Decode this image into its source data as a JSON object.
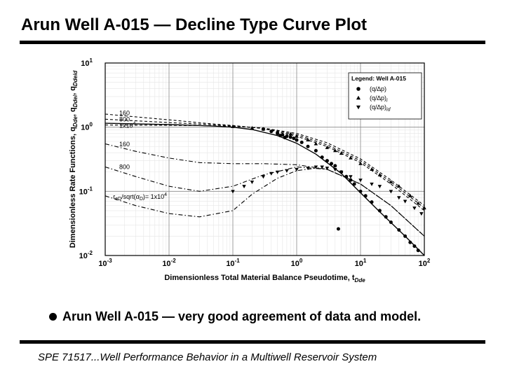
{
  "slide": {
    "title": "Arun Well A-015 — Decline Type Curve Plot",
    "bullet": "Arun Well A-015 — very good agreement of data and model.",
    "footer": "SPE 71517...Well Performance Behavior in a Multiwell Reservoir System"
  },
  "chart_data": {
    "type": "scatter",
    "x_scale": "log",
    "y_scale": "log",
    "xlim": [
      0.001,
      100
    ],
    "ylim": [
      0.01,
      10
    ],
    "grid": "major",
    "xlabel": "Dimensionless Total Material Balance Pseudotime, t",
    "xlabel_sub": "Dde",
    "ylabel_parts": [
      {
        "t": "Dimensionless Rate Functions, q",
        "s": false
      },
      {
        "t": "Dde",
        "s": true
      },
      {
        "t": ", q",
        "s": false
      },
      {
        "t": "Ddei",
        "s": true
      },
      {
        "t": ", q",
        "s": false
      },
      {
        "t": "Ddeid",
        "s": true
      }
    ],
    "x_ticks": [
      {
        "value": 0.001,
        "base": "10",
        "exp": "-3"
      },
      {
        "value": 0.01,
        "base": "10",
        "exp": "-2"
      },
      {
        "value": 0.1,
        "base": "10",
        "exp": "-1"
      },
      {
        "value": 1,
        "base": "10",
        "exp": "0"
      },
      {
        "value": 10,
        "base": "10",
        "exp": "1"
      },
      {
        "value": 100,
        "base": "10",
        "exp": "2"
      }
    ],
    "y_ticks": [
      {
        "value": 0.01,
        "base": "10",
        "exp": "-2"
      },
      {
        "value": 0.1,
        "base": "10",
        "exp": "-1"
      },
      {
        "value": 1,
        "base": "10",
        "exp": "0"
      },
      {
        "value": 10,
        "base": "10",
        "exp": "1"
      }
    ],
    "legend": {
      "position": "top-right",
      "title": "Legend: Well A-015",
      "entries": [
        {
          "marker": "circle",
          "label": "(q/∆p)"
        },
        {
          "marker": "triangle-up",
          "label": "(q/∆p)",
          "sub": "i"
        },
        {
          "marker": "triangle-down",
          "label": "(q/∆p)",
          "sub": "id"
        }
      ]
    },
    "annotations": [
      {
        "text": "160",
        "x": 0.0015,
        "y": 1.65
      },
      {
        "text": "800",
        "x": 0.0015,
        "y": 1.33
      },
      {
        "text": "1x10",
        "sup": "4",
        "x": 0.0015,
        "y": 1.06
      },
      {
        "text": "160",
        "x": 0.0015,
        "y": 0.54
      },
      {
        "text": "800",
        "x": 0.0015,
        "y": 0.24
      },
      {
        "text": "r",
        "sub": "eD",
        "rest": "/sqrt(",
        "glyph": "α",
        "sub2": "D",
        "rest2": ")= 1x10",
        "sup": "4",
        "x": 0.0012,
        "y": 0.082
      }
    ],
    "model_curves": [
      {
        "name": "rate",
        "style": "solid",
        "x": [
          0.001,
          0.01,
          0.05,
          0.1,
          0.2,
          0.5,
          1,
          2,
          5,
          10,
          20,
          50,
          100
        ],
        "y": [
          1.15,
          1.1,
          1.04,
          1.0,
          0.92,
          0.74,
          0.56,
          0.38,
          0.19,
          0.095,
          0.048,
          0.02,
          0.01
        ]
      },
      {
        "name": "integral 160",
        "style": "dashed",
        "x": [
          0.001,
          0.01,
          0.05,
          0.1,
          0.3,
          1,
          3,
          10,
          30,
          100
        ],
        "y": [
          1.6,
          1.3,
          1.12,
          1.06,
          0.95,
          0.72,
          0.5,
          0.28,
          0.13,
          0.05
        ]
      },
      {
        "name": "integral 800",
        "style": "dashed",
        "x": [
          0.001,
          0.01,
          0.05,
          0.1,
          0.3,
          1,
          3,
          10,
          30,
          100
        ],
        "y": [
          1.33,
          1.18,
          1.09,
          1.05,
          0.96,
          0.76,
          0.53,
          0.3,
          0.14,
          0.055
        ]
      },
      {
        "name": "integral 1x10^4",
        "style": "dashed",
        "x": [
          0.001,
          0.01,
          0.05,
          0.1,
          0.3,
          1,
          3,
          10,
          30,
          100
        ],
        "y": [
          1.08,
          1.07,
          1.05,
          1.03,
          0.97,
          0.8,
          0.57,
          0.32,
          0.15,
          0.06
        ]
      },
      {
        "name": "integral-derivative 160",
        "style": "dash-dot",
        "x": [
          0.001,
          0.003,
          0.01,
          0.03,
          0.1,
          0.3,
          1,
          3,
          10,
          30,
          100
        ],
        "y": [
          0.55,
          0.42,
          0.33,
          0.28,
          0.27,
          0.27,
          0.26,
          0.22,
          0.13,
          0.06,
          0.02
        ]
      },
      {
        "name": "integral-derivative 800",
        "style": "dash-dot",
        "x": [
          0.001,
          0.003,
          0.01,
          0.03,
          0.1,
          0.3,
          1,
          3,
          10,
          30,
          100
        ],
        "y": [
          0.24,
          0.17,
          0.12,
          0.1,
          0.12,
          0.18,
          0.24,
          0.22,
          0.13,
          0.06,
          0.02
        ]
      },
      {
        "name": "integral-derivative 1x10^4",
        "style": "dash-dot",
        "x": [
          0.001,
          0.003,
          0.01,
          0.03,
          0.1,
          0.2,
          0.5,
          1,
          2,
          3,
          10,
          30,
          100
        ],
        "y": [
          0.085,
          0.06,
          0.045,
          0.04,
          0.05,
          0.09,
          0.16,
          0.21,
          0.23,
          0.22,
          0.13,
          0.06,
          0.02
        ]
      }
    ],
    "series": [
      {
        "marker": "circle",
        "x": [
          0.3,
          0.4,
          0.5,
          0.6,
          0.7,
          0.8,
          0.9,
          1.0,
          1.2,
          1.5,
          2,
          2.5,
          3,
          3.5,
          4,
          5,
          6,
          7,
          8,
          10,
          12,
          15,
          20,
          25,
          30,
          40,
          50,
          60,
          70,
          80,
          4.5,
          0.55,
          0.65
        ],
        "y": [
          0.93,
          0.86,
          0.8,
          0.76,
          0.72,
          0.7,
          0.67,
          0.63,
          0.58,
          0.5,
          0.43,
          0.34,
          0.3,
          0.27,
          0.25,
          0.2,
          0.17,
          0.15,
          0.13,
          0.1,
          0.085,
          0.068,
          0.05,
          0.04,
          0.033,
          0.025,
          0.02,
          0.016,
          0.014,
          0.012,
          0.026,
          0.74,
          0.69
        ]
      },
      {
        "marker": "triangle-up",
        "x": [
          0.1,
          0.2,
          0.3,
          0.5,
          0.8,
          1.0,
          1.5,
          2,
          3,
          4,
          5,
          7,
          10,
          15,
          20,
          30,
          40,
          60,
          80,
          100
        ],
        "y": [
          1.02,
          0.97,
          0.93,
          0.85,
          0.78,
          0.72,
          0.63,
          0.55,
          0.48,
          0.43,
          0.39,
          0.33,
          0.27,
          0.22,
          0.18,
          0.14,
          0.12,
          0.085,
          0.065,
          0.055
        ]
      },
      {
        "marker": "triangle-down",
        "x": [
          0.1,
          0.15,
          0.2,
          0.3,
          0.4,
          0.5,
          0.7,
          1.0,
          1.5,
          2,
          2.5,
          3,
          4,
          5,
          7,
          10,
          15,
          20,
          30,
          40,
          50,
          70,
          90
        ],
        "y": [
          0.1,
          0.12,
          0.14,
          0.17,
          0.19,
          0.2,
          0.21,
          0.22,
          0.23,
          0.24,
          0.24,
          0.23,
          0.22,
          0.2,
          0.17,
          0.15,
          0.13,
          0.12,
          0.1,
          0.08,
          0.07,
          0.055,
          0.045
        ]
      }
    ]
  }
}
